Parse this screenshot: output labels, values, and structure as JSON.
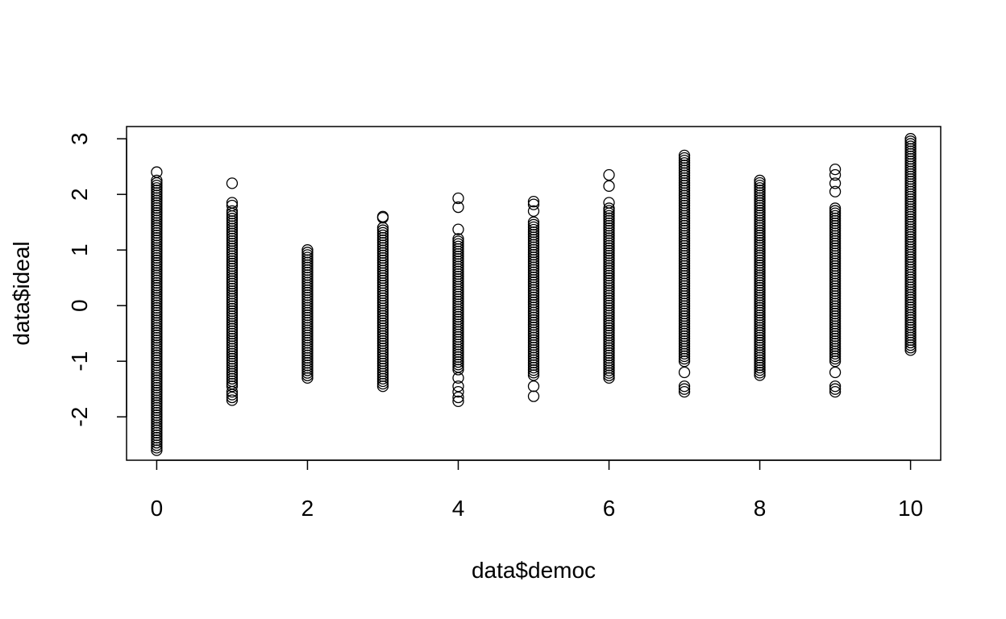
{
  "chart_data": {
    "type": "scatter",
    "title": "",
    "xlabel": "data$democ",
    "ylabel": "data$ideal",
    "xlim": [
      -0.4,
      10.4
    ],
    "ylim": [
      -2.78,
      3.22
    ],
    "x_ticks": [
      0,
      2,
      4,
      6,
      8,
      10
    ],
    "y_ticks": [
      -2,
      -1,
      0,
      1,
      2,
      3
    ],
    "x_tick_labels": [
      "0",
      "2",
      "4",
      "6",
      "8",
      "10"
    ],
    "y_tick_labels": [
      "-2",
      "-1",
      "0",
      "1",
      "2",
      "3"
    ],
    "grid": false,
    "marker": "open-circle",
    "marker_color": "#000000",
    "series": [
      {
        "x": 0,
        "y_range": [
          -2.6,
          2.25
        ],
        "outliers": [
          2.4
        ]
      },
      {
        "x": 1,
        "y_range": [
          -1.45,
          1.7
        ],
        "outliers": [
          2.2,
          1.85,
          1.8,
          -1.55,
          -1.6,
          -1.65,
          -1.7
        ]
      },
      {
        "x": 2,
        "y_range": [
          -1.3,
          1.0
        ],
        "outliers": []
      },
      {
        "x": 3,
        "y_range": [
          -1.45,
          1.4
        ],
        "outliers": [
          1.6,
          1.58
        ]
      },
      {
        "x": 4,
        "y_range": [
          -1.15,
          1.2
        ],
        "outliers": [
          1.93,
          1.77,
          1.37,
          -1.3,
          -1.45,
          -1.55,
          -1.65,
          -1.72
        ]
      },
      {
        "x": 5,
        "y_range": [
          -1.25,
          1.5
        ],
        "outliers": [
          1.87,
          1.82,
          1.7,
          -1.45,
          -1.63
        ]
      },
      {
        "x": 6,
        "y_range": [
          -1.3,
          1.75
        ],
        "outliers": [
          2.35,
          2.15,
          1.85
        ]
      },
      {
        "x": 7,
        "y_range": [
          -1.0,
          2.7
        ],
        "outliers": [
          -1.2,
          -1.45,
          -1.5,
          -1.55
        ]
      },
      {
        "x": 8,
        "y_range": [
          -1.25,
          2.25
        ],
        "outliers": []
      },
      {
        "x": 9,
        "y_range": [
          -1.0,
          1.75
        ],
        "outliers": [
          2.45,
          2.35,
          2.2,
          2.05,
          -1.2,
          -1.45,
          -1.5,
          -1.55
        ]
      },
      {
        "x": 10,
        "y_range": [
          -0.8,
          3.0
        ],
        "outliers": []
      }
    ]
  }
}
